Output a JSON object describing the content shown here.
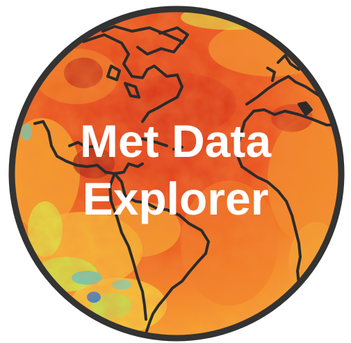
{
  "logo": {
    "line1": "Met Data",
    "line2": "Explorer",
    "colors": {
      "ring": "#333333",
      "ocean_hot": "#e23a1c",
      "land_warm": "#f37a22",
      "land_mild": "#f9c13a",
      "cool": "#c7ef4a",
      "cold": "#4fd9d3",
      "coldest": "#1e7fe0",
      "coastline": "#2b2b2b",
      "text": "#ffffff"
    }
  }
}
